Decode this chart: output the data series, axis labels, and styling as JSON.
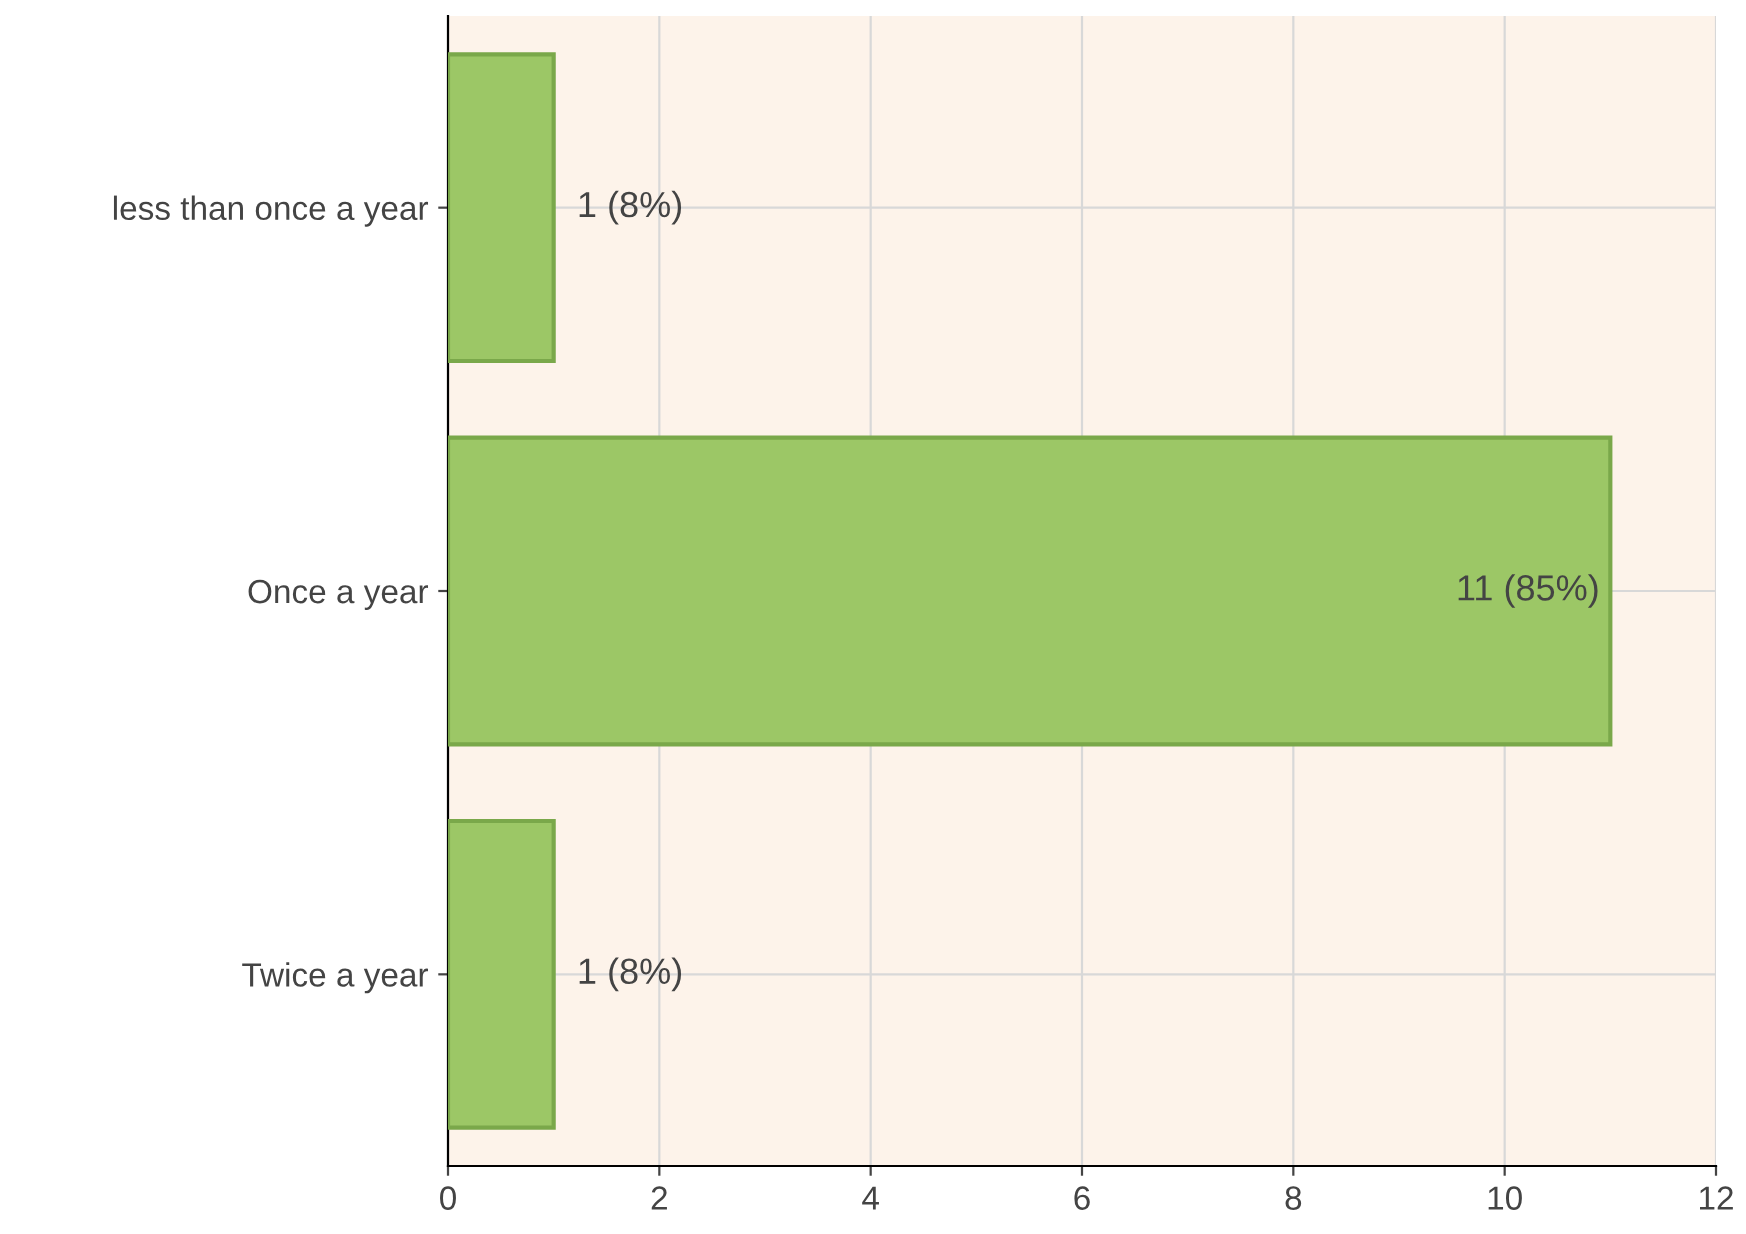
{
  "chart_data": {
    "type": "bar",
    "orientation": "horizontal",
    "categories": [
      "less than once a year",
      "Once a year",
      "Twice a year"
    ],
    "values": [
      1,
      11,
      1
    ],
    "value_labels": [
      "1 (8%)",
      "11 (85%)",
      "1 (8%)"
    ],
    "color": "#9cc766",
    "xlim": [
      0,
      12
    ],
    "xticks": [
      0,
      2,
      4,
      6,
      8,
      10,
      12
    ],
    "grid": true
  }
}
